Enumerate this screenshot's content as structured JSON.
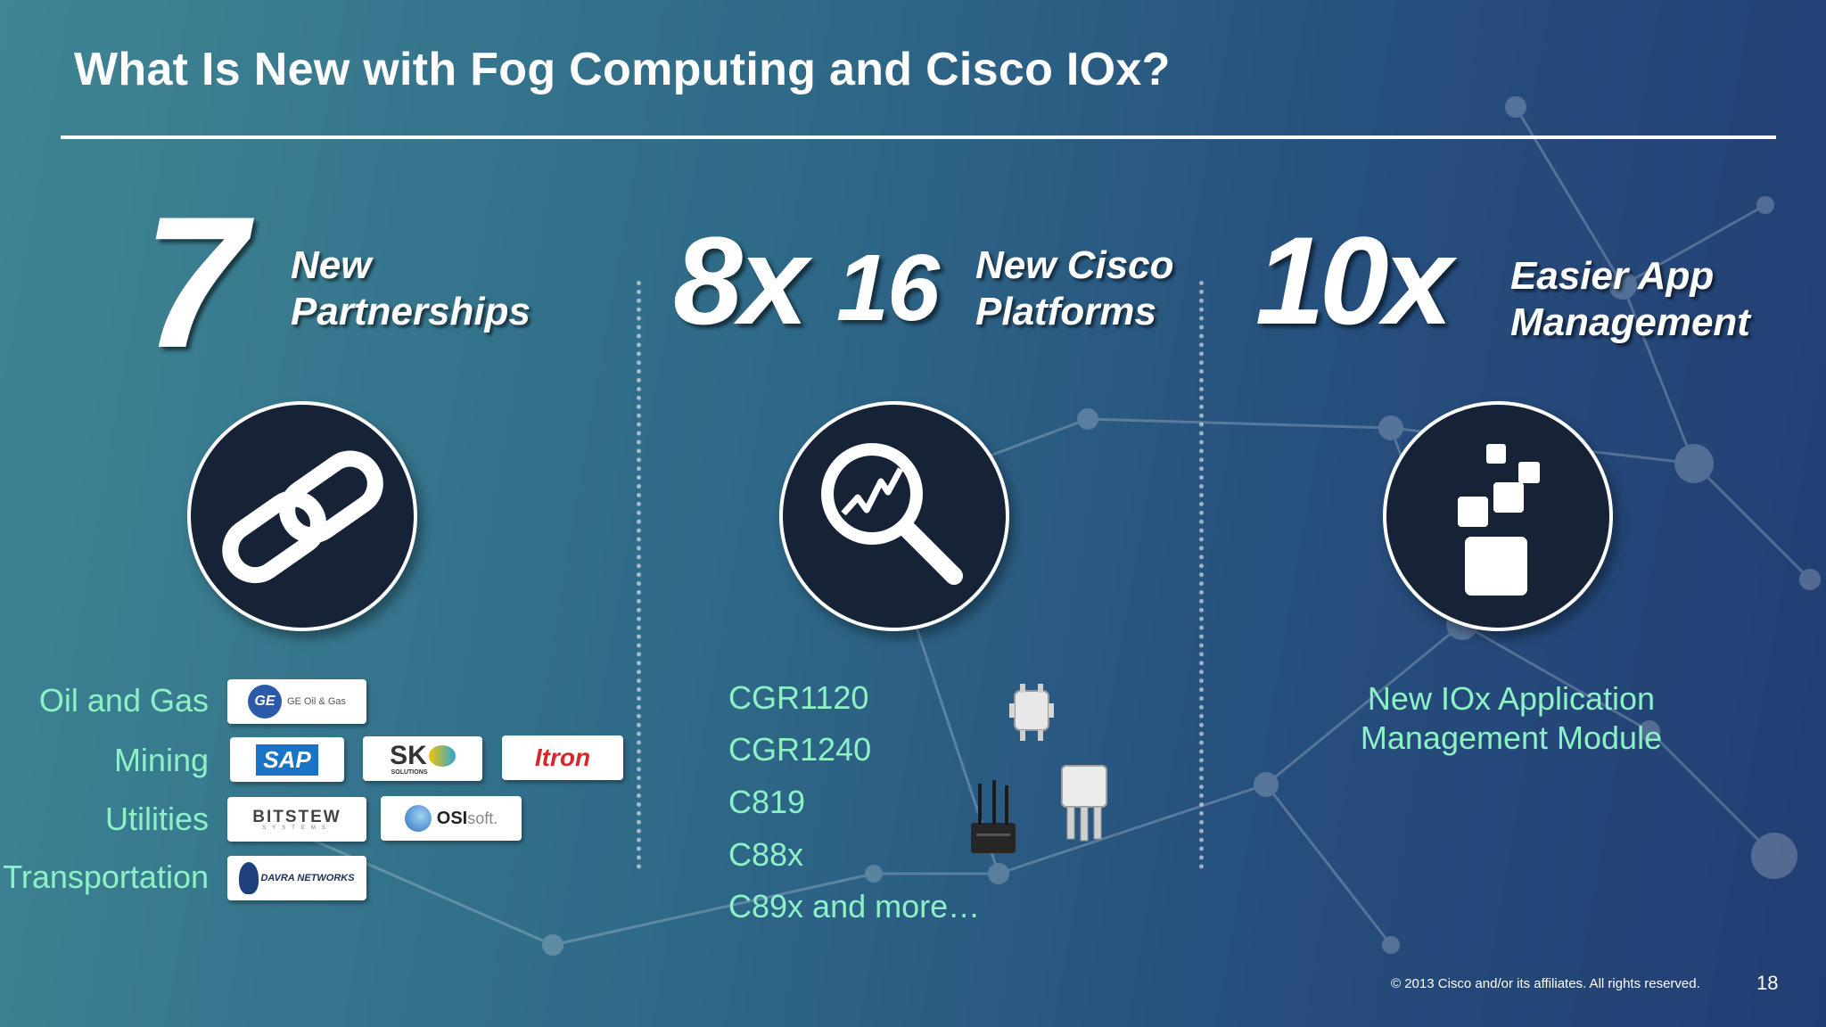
{
  "slide": {
    "title": "What Is New with Fog Computing and Cisco IOx?"
  },
  "columns": {
    "partnerships": {
      "number": "7",
      "label_line1": "New",
      "label_line2": "Partnerships",
      "icon": "link-icon"
    },
    "platforms": {
      "number_a": "8x",
      "number_b": "16",
      "label_line1": "New Cisco",
      "label_line2": "Platforms",
      "icon": "magnifier-chart-icon"
    },
    "management": {
      "number": "10x",
      "label_line1": "Easier App",
      "label_line2": "Management",
      "icon": "app-blocks-icon"
    }
  },
  "industries": [
    {
      "name": "Oil and Gas",
      "logos": [
        "GE Oil & Gas"
      ]
    },
    {
      "name": "Mining",
      "logos": [
        "SAP",
        "SK SOLUTIONS",
        "Itron"
      ]
    },
    {
      "name": "Utilities",
      "logos": [
        "BITSTEW",
        "SYSTEMS",
        "OSIsoft."
      ]
    },
    {
      "name": "Transportation",
      "logos": [
        "DAVRA NETWORKS"
      ]
    }
  ],
  "logo_text": {
    "ge": "GE Oil & Gas",
    "sap": "SAP",
    "sk": "SK",
    "sk_sub": "SOLUTIONS",
    "itron": "Itron",
    "bitstew": "BITSTEW",
    "bitstew_sub": "SYSTEMS",
    "osi": "OSI",
    "osi_soft": "soft.",
    "davra": "DAVRA NETWORKS"
  },
  "platforms_list": [
    "CGR1120",
    "CGR1240",
    "C819",
    "C88x",
    "C89x and more…"
  ],
  "management_text": {
    "line1": "New IOx Application",
    "line2": "Management Module"
  },
  "footer": {
    "copyright": "© 2013 Cisco and/or its affiliates. All rights reserved.",
    "page": "18"
  },
  "colors": {
    "accent_text": "#8cf2c6",
    "circle_fill": "#162337",
    "itron": "#d9262b",
    "sap_blue": "#1a73c7"
  }
}
